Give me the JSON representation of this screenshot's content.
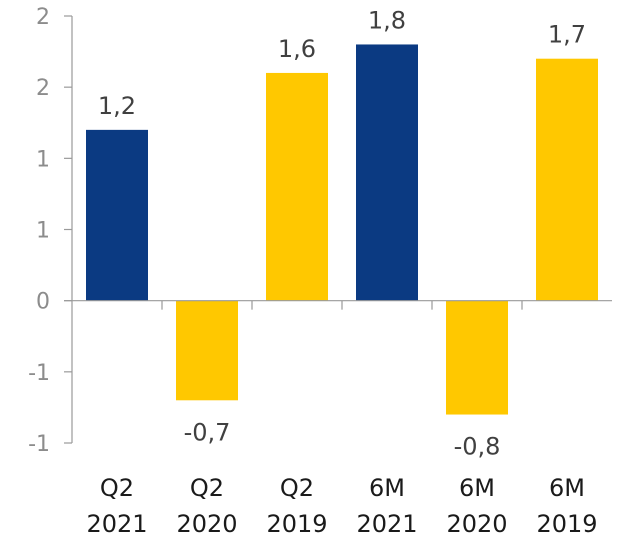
{
  "chart_data": {
    "type": "bar",
    "title": "",
    "xlabel": "",
    "ylabel": "",
    "categories": [
      [
        "Q2",
        "2021"
      ],
      [
        "Q2",
        "2020"
      ],
      [
        "Q2",
        "2019"
      ],
      [
        "6M",
        "2021"
      ],
      [
        "6M",
        "2020"
      ],
      [
        "6M",
        "2019"
      ]
    ],
    "values": [
      1.2,
      -0.7,
      1.6,
      1.8,
      -0.8,
      1.7
    ],
    "data_labels": [
      "1,2",
      "-0,7",
      "1,6",
      "1,8",
      "-0,8",
      "1,7"
    ],
    "y_tick_values": [
      2.0,
      1.5,
      1.0,
      0.5,
      0.0,
      -0.5,
      -1.0
    ],
    "y_tick_labels": [
      "2",
      "2",
      "1",
      "1",
      "0",
      "-1",
      "-1"
    ],
    "ylim": [
      -1.0,
      2.0
    ],
    "grid": false,
    "legend": "none",
    "colors": [
      "#0b3a82",
      "#ffc800",
      "#ffc800",
      "#0b3a82",
      "#ffc800",
      "#ffc800"
    ]
  }
}
